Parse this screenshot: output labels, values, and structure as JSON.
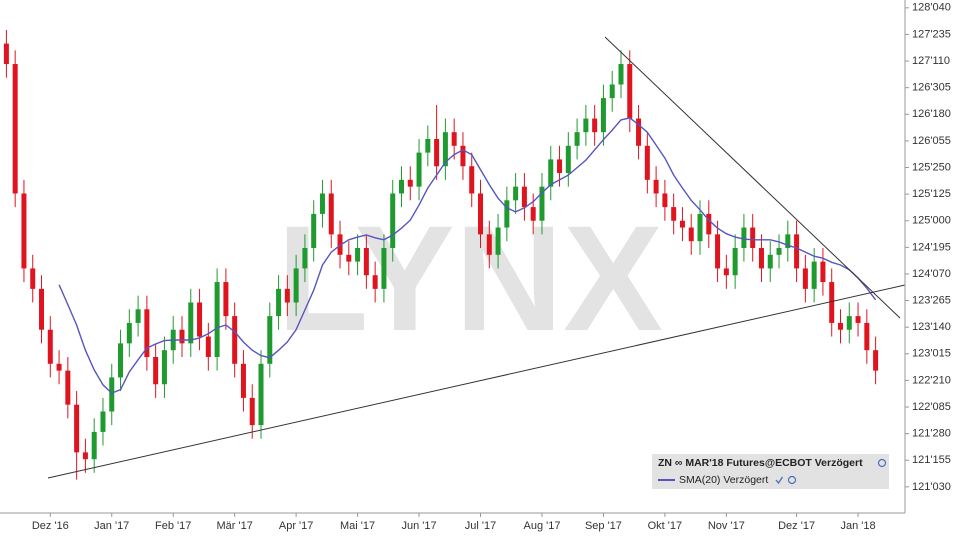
{
  "chart_data": {
    "type": "candlestick",
    "watermark": "LYNX",
    "legend": "bottom-right",
    "categories": [
      null,
      null,
      null,
      null,
      null,
      "Dez '16",
      null,
      null,
      null,
      null,
      null,
      null,
      "Jan '17",
      null,
      null,
      null,
      null,
      null,
      null,
      "Feb '17",
      null,
      null,
      null,
      null,
      null,
      null,
      "Mär '17",
      null,
      null,
      null,
      null,
      null,
      null,
      "Apr '17",
      null,
      null,
      null,
      null,
      null,
      null,
      "Mai '17",
      null,
      null,
      null,
      null,
      null,
      null,
      "Jun '17",
      null,
      null,
      null,
      null,
      null,
      null,
      "Jul '17",
      null,
      null,
      null,
      null,
      null,
      null,
      "Aug '17",
      null,
      null,
      null,
      null,
      null,
      null,
      "Sep '17",
      null,
      null,
      null,
      null,
      null,
      null,
      "Okt '17",
      null,
      null,
      null,
      null,
      null,
      null,
      "Nov '17",
      null,
      null,
      null,
      null,
      null,
      null,
      null,
      "Dez '17",
      null,
      null,
      null,
      null,
      null,
      null,
      "Jan '18",
      null,
      null
    ],
    "series": [
      {
        "name": "ZN ∞ MAR'18 Futures@ECBOT Verzögert",
        "kind": "candlestick",
        "up_color": "#1f9a2e",
        "down_color": "#e0141e",
        "open": [
          127.6,
          127.3,
          125.4,
          124.3,
          124.0,
          123.4,
          122.9,
          122.8,
          122.3,
          121.6,
          121.5,
          121.9,
          122.2,
          122.7,
          123.2,
          123.5,
          123.7,
          123.0,
          122.6,
          123.1,
          123.4,
          123.2,
          123.8,
          123.3,
          123.0,
          124.1,
          123.6,
          122.9,
          122.4,
          122.0,
          122.9,
          123.6,
          124.0,
          123.8,
          124.3,
          124.6,
          125.1,
          125.4,
          124.8,
          124.5,
          124.4,
          124.6,
          124.2,
          124.0,
          124.6,
          125.4,
          125.6,
          125.5,
          126.0,
          126.2,
          125.8,
          126.3,
          126.1,
          125.8,
          125.4,
          124.8,
          124.5,
          124.9,
          125.3,
          125.5,
          125.2,
          125.0,
          125.5,
          125.9,
          125.7,
          126.1,
          126.3,
          126.5,
          126.3,
          126.8,
          127.0,
          127.3,
          126.5,
          126.1,
          125.6,
          125.4,
          125.2,
          125.0,
          124.9,
          124.7,
          125.1,
          124.8,
          124.3,
          124.2,
          124.6,
          124.9,
          124.6,
          124.3,
          124.5,
          124.6,
          124.8,
          124.3,
          124.0,
          124.4,
          124.1,
          123.5,
          123.4,
          123.6,
          123.5,
          123.1
        ],
        "high": [
          127.8,
          127.5,
          125.6,
          124.5,
          124.2,
          123.6,
          123.1,
          123.0,
          122.5,
          121.8,
          122.1,
          122.4,
          122.9,
          123.4,
          123.7,
          123.9,
          123.9,
          123.2,
          123.3,
          123.6,
          123.6,
          124.0,
          124.0,
          123.5,
          124.3,
          124.3,
          123.8,
          123.1,
          122.6,
          123.1,
          123.8,
          124.2,
          124.2,
          124.5,
          124.8,
          125.3,
          125.6,
          125.6,
          125.0,
          124.7,
          124.8,
          124.8,
          124.4,
          124.8,
          125.6,
          125.8,
          125.8,
          126.2,
          126.4,
          126.7,
          126.5,
          126.5,
          126.3,
          126.0,
          125.6,
          125.0,
          125.1,
          125.5,
          125.7,
          125.7,
          125.4,
          125.7,
          126.1,
          126.1,
          126.3,
          126.5,
          126.7,
          126.7,
          127.0,
          127.2,
          127.5,
          127.5,
          126.7,
          126.3,
          125.8,
          125.6,
          125.4,
          125.2,
          125.1,
          125.3,
          125.3,
          125.0,
          124.5,
          124.8,
          125.1,
          125.1,
          124.8,
          124.7,
          124.8,
          125.0,
          125.0,
          124.5,
          124.6,
          124.6,
          124.3,
          123.7,
          123.8,
          123.8,
          123.7,
          123.3
        ],
        "low": [
          127.1,
          125.2,
          124.1,
          123.8,
          123.2,
          122.7,
          122.6,
          122.1,
          121.2,
          121.3,
          121.3,
          121.7,
          122.0,
          122.5,
          123.0,
          123.3,
          122.8,
          122.4,
          122.4,
          122.9,
          123.0,
          123.0,
          123.1,
          122.8,
          122.8,
          123.4,
          122.7,
          122.2,
          121.8,
          121.8,
          122.7,
          123.4,
          123.6,
          123.6,
          124.1,
          124.4,
          124.9,
          124.6,
          124.3,
          124.2,
          124.2,
          124.0,
          123.8,
          123.8,
          124.4,
          125.2,
          125.3,
          125.3,
          125.8,
          125.6,
          125.6,
          125.9,
          125.6,
          125.2,
          124.6,
          124.3,
          124.3,
          124.7,
          125.1,
          125.0,
          124.8,
          124.8,
          125.3,
          125.5,
          125.5,
          125.9,
          126.1,
          126.1,
          126.1,
          126.6,
          126.8,
          126.3,
          125.9,
          125.4,
          125.2,
          125.0,
          124.8,
          124.7,
          124.5,
          124.5,
          124.6,
          124.1,
          124.0,
          124.0,
          124.4,
          124.4,
          124.1,
          124.1,
          124.3,
          124.4,
          124.1,
          123.8,
          123.8,
          123.9,
          123.3,
          123.2,
          123.2,
          123.3,
          122.9,
          122.6
        ],
        "close": [
          127.3,
          125.4,
          124.3,
          124.0,
          123.4,
          122.9,
          122.8,
          122.3,
          121.6,
          121.5,
          121.9,
          122.2,
          122.7,
          123.2,
          123.5,
          123.7,
          123.0,
          122.6,
          123.1,
          123.4,
          123.2,
          123.8,
          123.3,
          123.0,
          124.1,
          123.6,
          122.9,
          122.4,
          122.0,
          122.9,
          123.6,
          124.0,
          123.8,
          124.3,
          124.6,
          125.1,
          125.4,
          124.8,
          124.5,
          124.4,
          124.6,
          124.2,
          124.0,
          124.6,
          125.4,
          125.6,
          125.5,
          126.0,
          126.2,
          125.8,
          126.3,
          126.1,
          125.8,
          125.4,
          124.8,
          124.5,
          124.9,
          125.3,
          125.5,
          125.2,
          125.0,
          125.5,
          125.9,
          125.7,
          126.1,
          126.3,
          126.5,
          126.3,
          126.8,
          127.0,
          127.3,
          126.5,
          126.1,
          125.6,
          125.4,
          125.2,
          125.0,
          124.9,
          124.7,
          125.1,
          124.8,
          124.3,
          124.2,
          124.6,
          124.9,
          124.6,
          124.3,
          124.5,
          124.6,
          124.8,
          124.3,
          124.0,
          124.4,
          124.1,
          123.5,
          123.4,
          123.6,
          123.5,
          123.1,
          122.8
        ]
      },
      {
        "name": "SMA(20) Verzögert",
        "kind": "line",
        "color": "#5656c0",
        "values": [
          null,
          null,
          null,
          null,
          null,
          null,
          124.06,
          123.77,
          123.47,
          123.1,
          122.81,
          122.59,
          122.47,
          122.52,
          122.78,
          122.96,
          123.13,
          123.19,
          123.24,
          123.25,
          123.25,
          123.25,
          123.28,
          123.34,
          123.43,
          123.47,
          123.37,
          123.22,
          123.1,
          123.02,
          122.99,
          123.1,
          123.22,
          123.4,
          123.69,
          123.98,
          124.35,
          124.54,
          124.64,
          124.72,
          124.76,
          124.79,
          124.75,
          124.72,
          124.79,
          124.89,
          125.01,
          125.23,
          125.48,
          125.67,
          125.86,
          125.97,
          126.04,
          125.97,
          125.75,
          125.53,
          125.33,
          125.19,
          125.13,
          125.19,
          125.28,
          125.41,
          125.53,
          125.6,
          125.67,
          125.78,
          125.89,
          126.04,
          126.19,
          126.33,
          126.48,
          126.51,
          126.41,
          126.3,
          126.11,
          125.92,
          125.67,
          125.48,
          125.3,
          125.16,
          125.01,
          124.89,
          124.81,
          124.76,
          124.73,
          124.72,
          124.72,
          124.72,
          124.69,
          124.64,
          124.6,
          124.54,
          124.48,
          124.45,
          124.39,
          124.35,
          124.28,
          124.16,
          124.01,
          123.84
        ]
      }
    ],
    "ylim": [
      120.71,
      128.24
    ],
    "yticks": [
      {
        "value": 121.09375,
        "label": "121'030"
      },
      {
        "value": 121.484375,
        "label": "121'155"
      },
      {
        "value": 121.875,
        "label": "121'280"
      },
      {
        "value": 122.265625,
        "label": "122'085"
      },
      {
        "value": 122.65625,
        "label": "122'210"
      },
      {
        "value": 123.046875,
        "label": "123'015"
      },
      {
        "value": 123.4375,
        "label": "123'140"
      },
      {
        "value": 123.828125,
        "label": "123'265"
      },
      {
        "value": 124.21875,
        "label": "124'070"
      },
      {
        "value": 124.609375,
        "label": "124'195"
      },
      {
        "value": 125.0,
        "label": "125'000"
      },
      {
        "value": 125.390625,
        "label": "125'125"
      },
      {
        "value": 125.78125,
        "label": "125'250"
      },
      {
        "value": 126.171875,
        "label": "126'055"
      },
      {
        "value": 126.5625,
        "label": "126'180"
      },
      {
        "value": 126.953125,
        "label": "126'305"
      },
      {
        "value": 127.34375,
        "label": "127'110"
      },
      {
        "value": 127.734375,
        "label": "127'235"
      },
      {
        "value": 128.125,
        "label": "128'040"
      }
    ]
  }
}
